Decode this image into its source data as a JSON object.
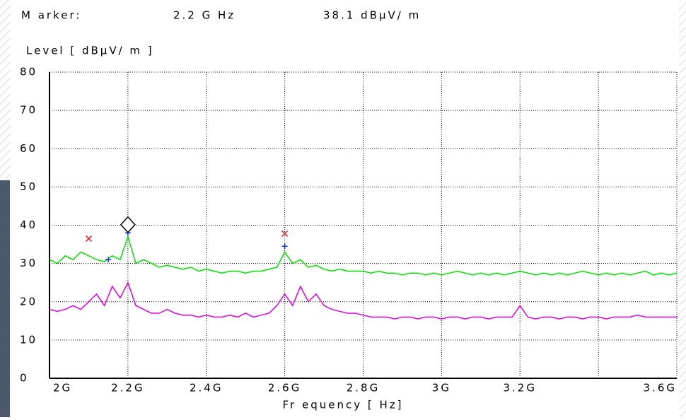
{
  "chart_data": {
    "type": "line",
    "marker": {
      "label": "M arker:",
      "x_label": "2.2 G Hz",
      "value_label": "38.1 dBµV/ m",
      "x": 2200000000,
      "value": 38.1
    },
    "y_label": "Level [ dBµV/ m ]",
    "x_label": "Fr equency  [ Hz]",
    "xlim": [
      2000000000,
      3600000000
    ],
    "ylim": [
      0,
      80
    ],
    "xticks": [
      {
        "value": 2000000000,
        "label": "2G"
      },
      {
        "value": 2200000000,
        "label": "2.2G"
      },
      {
        "value": 2400000000,
        "label": "2.4G"
      },
      {
        "value": 2600000000,
        "label": "2.6G"
      },
      {
        "value": 2800000000,
        "label": "2.8G"
      },
      {
        "value": 3000000000,
        "label": "3G"
      },
      {
        "value": 3200000000,
        "label": "3.2G"
      },
      {
        "value": 3400000000,
        "label": null
      },
      {
        "value": 3600000000,
        "label": "3.6G"
      }
    ],
    "yticks": [
      0,
      10,
      20,
      30,
      40,
      50,
      60,
      70,
      80
    ],
    "grid": true,
    "x": [
      2000000000,
      2020000000,
      2040000000,
      2060000000,
      2080000000,
      2100000000,
      2120000000,
      2140000000,
      2160000000,
      2180000000,
      2200000000,
      2220000000,
      2240000000,
      2260000000,
      2280000000,
      2300000000,
      2320000000,
      2340000000,
      2360000000,
      2380000000,
      2400000000,
      2420000000,
      2440000000,
      2460000000,
      2480000000,
      2500000000,
      2520000000,
      2540000000,
      2560000000,
      2580000000,
      2600000000,
      2620000000,
      2640000000,
      2660000000,
      2680000000,
      2700000000,
      2720000000,
      2740000000,
      2760000000,
      2780000000,
      2800000000,
      2820000000,
      2840000000,
      2860000000,
      2880000000,
      2900000000,
      2920000000,
      2940000000,
      2960000000,
      2980000000,
      3000000000,
      3020000000,
      3040000000,
      3060000000,
      3080000000,
      3100000000,
      3120000000,
      3140000000,
      3160000000,
      3180000000,
      3200000000,
      3220000000,
      3240000000,
      3260000000,
      3280000000,
      3300000000,
      3320000000,
      3340000000,
      3360000000,
      3380000000,
      3400000000,
      3420000000,
      3440000000,
      3460000000,
      3480000000,
      3500000000,
      3520000000,
      3540000000,
      3560000000,
      3580000000,
      3600000000
    ],
    "series": [
      {
        "color": "#00e000",
        "values": [
          31,
          30,
          32,
          31,
          33,
          32,
          31,
          30.5,
          32,
          31,
          37,
          30,
          31,
          30,
          29,
          29.5,
          29,
          28.5,
          29,
          28,
          28.5,
          28,
          27.5,
          28,
          28,
          27.5,
          28,
          28,
          28.5,
          29,
          33,
          30,
          31,
          29,
          29.5,
          28.5,
          28,
          28.5,
          28,
          28,
          28,
          27.5,
          28,
          27.5,
          27.5,
          27,
          27.5,
          27.5,
          27,
          27.5,
          27,
          27.5,
          28,
          27.5,
          27,
          27.5,
          27,
          27.5,
          27,
          27.5,
          28,
          27.5,
          27,
          27.5,
          27,
          27.5,
          27,
          27.5,
          28,
          27.5,
          27,
          27.5,
          27,
          27.5,
          27,
          27.5,
          28,
          27,
          27.5,
          27,
          27.5
        ]
      },
      {
        "color": "#e000e0",
        "values": [
          18,
          17.5,
          18,
          19,
          18,
          20,
          22,
          19,
          24,
          21,
          25,
          19,
          18,
          17,
          17,
          18,
          17,
          16.5,
          16.5,
          16,
          16.5,
          16,
          16,
          16.5,
          16,
          17,
          16,
          16.5,
          17,
          19,
          22,
          19,
          24,
          20,
          22,
          19,
          18,
          17.5,
          17,
          17,
          16.5,
          16,
          16,
          16,
          15.5,
          16,
          16,
          15.5,
          16,
          16,
          15.5,
          16,
          16,
          15.5,
          16,
          16,
          15.5,
          16,
          16,
          16,
          19,
          16,
          15.5,
          16,
          16,
          15.5,
          16,
          16,
          15.5,
          16,
          16,
          15.5,
          16,
          16,
          16,
          16.5,
          16,
          16,
          16,
          16,
          16
        ]
      }
    ],
    "peaks_max": {
      "color": "#e02020",
      "x": [
        2100000000,
        2600000000
      ],
      "values": [
        36.5,
        37.8
      ]
    },
    "peaks_avg": {
      "color": "#1030e0",
      "x": [
        2150000000,
        2200000000,
        2600000000
      ],
      "values": [
        31,
        38,
        34.5
      ]
    }
  }
}
